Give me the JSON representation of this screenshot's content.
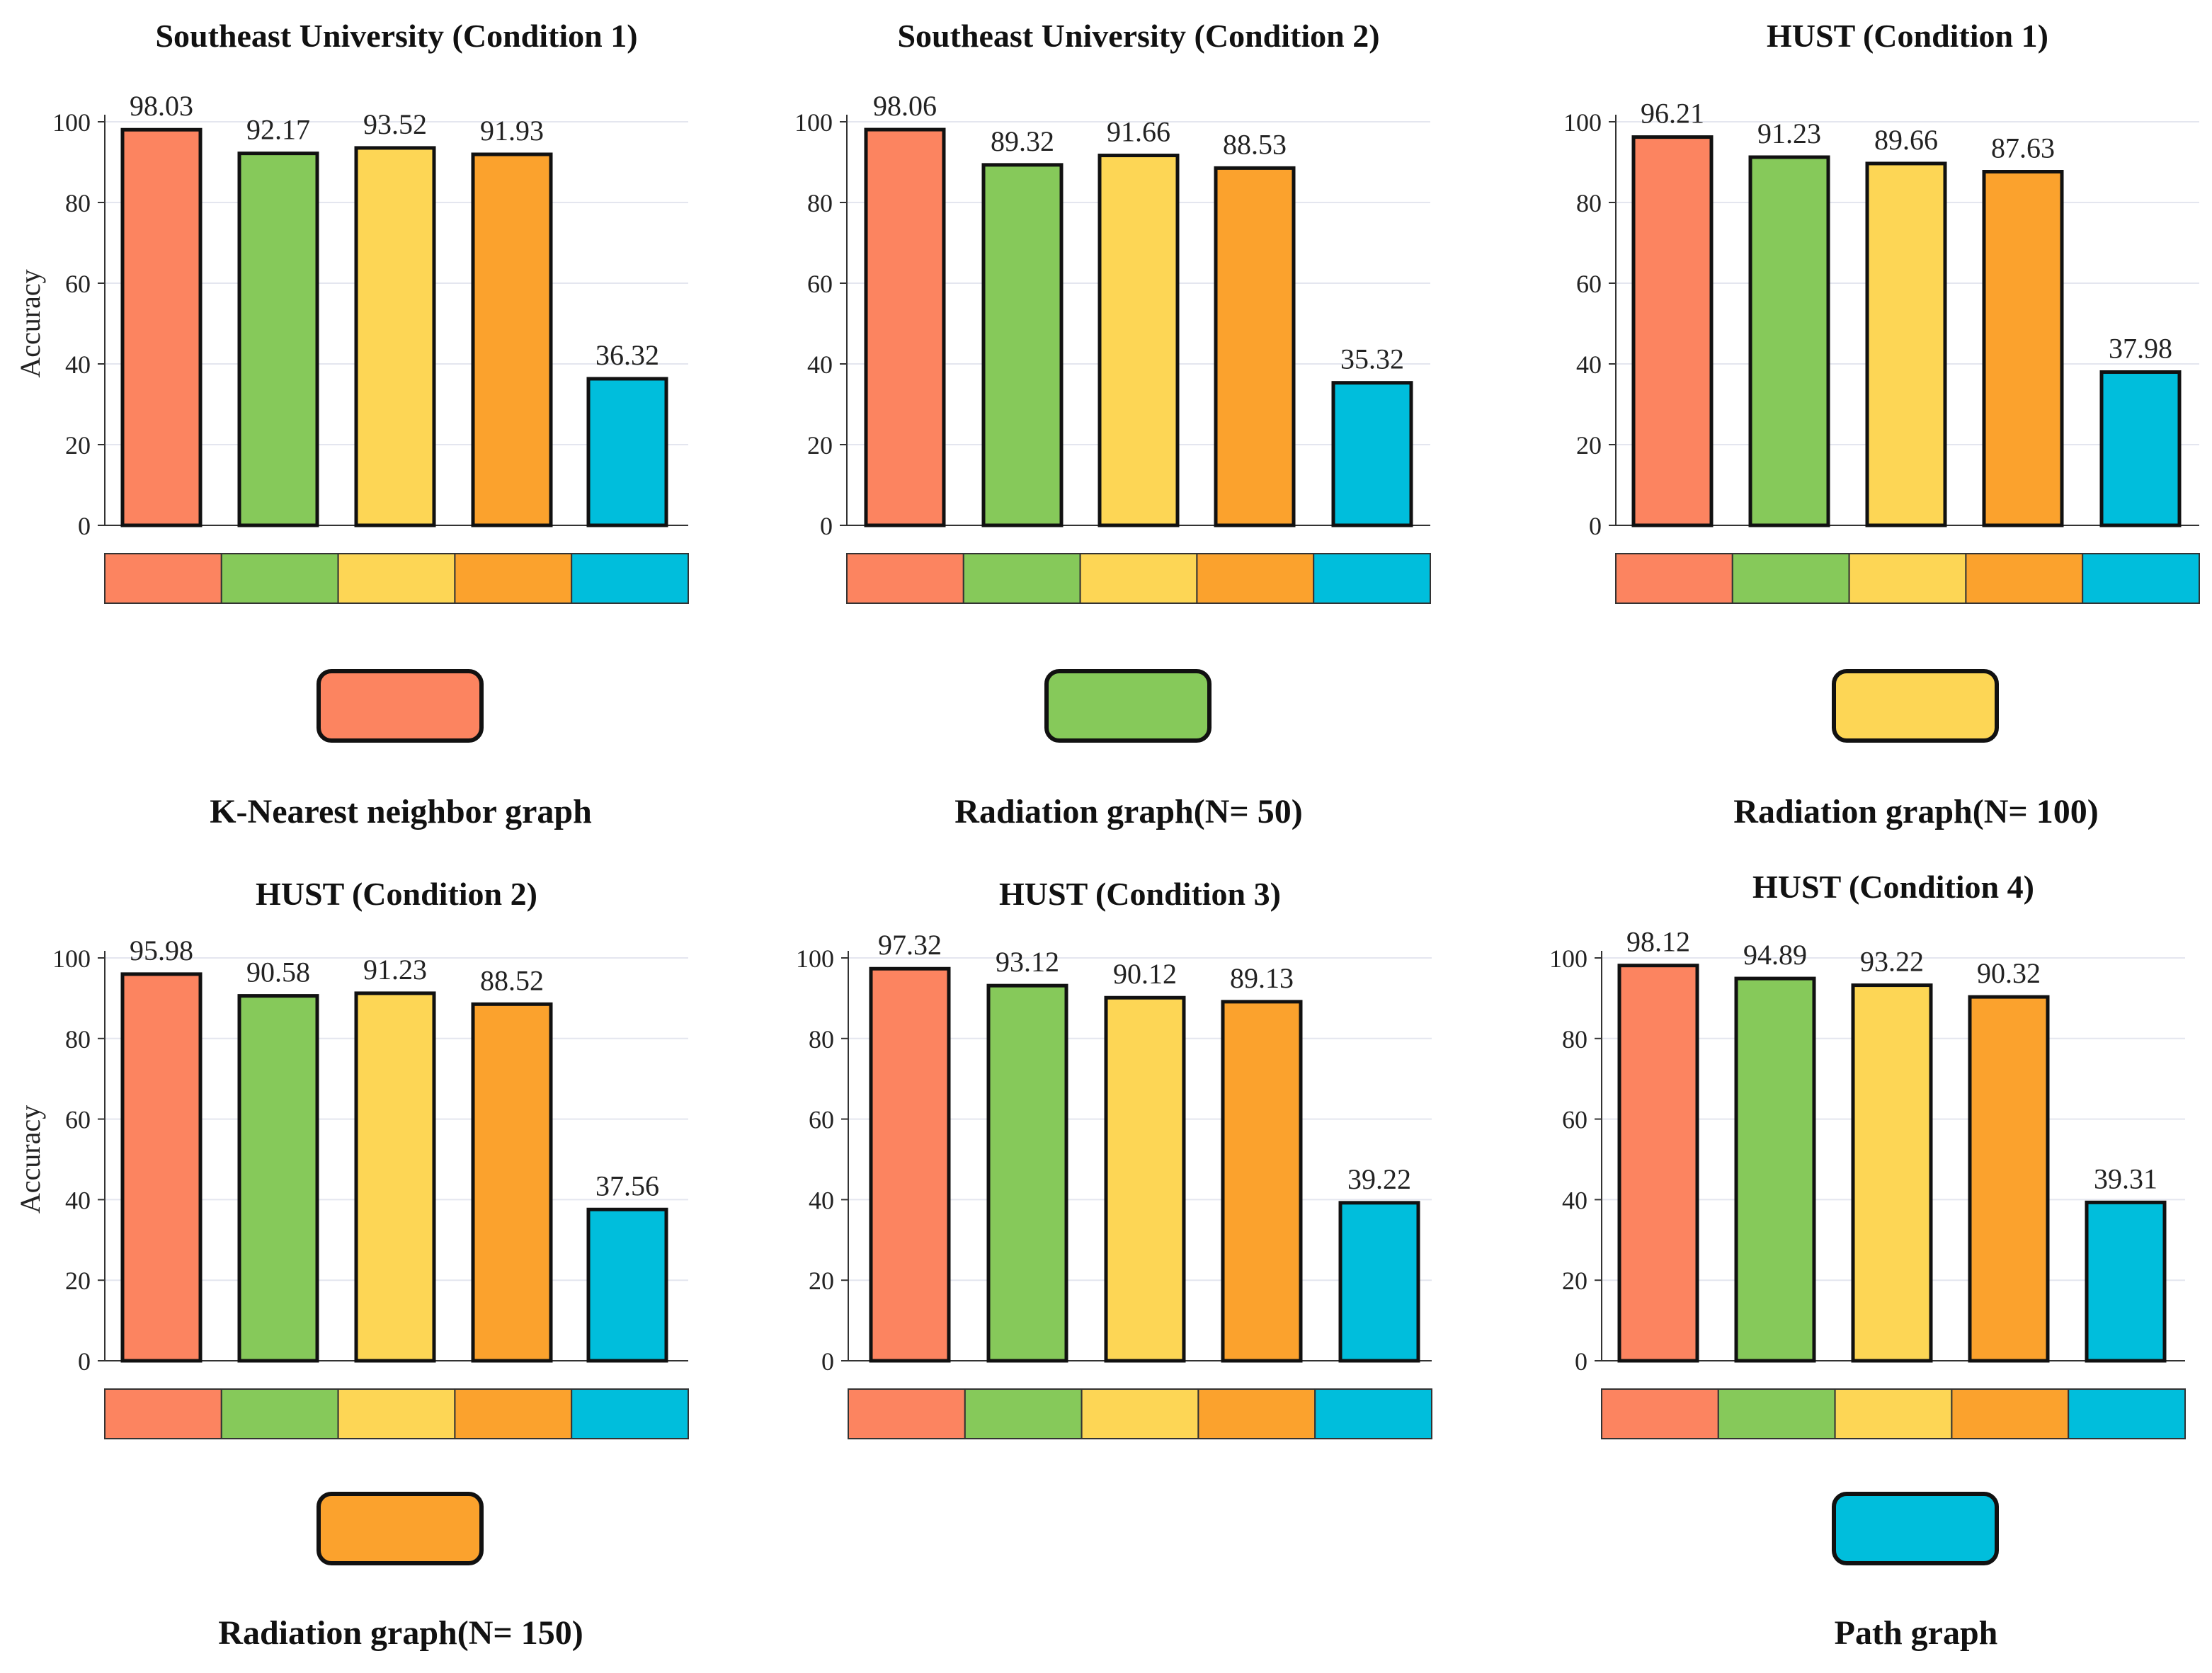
{
  "chart_data": [
    {
      "type": "bar",
      "title": "Southeast University (Condition 1)",
      "ylabel": "Accuracy",
      "ylim": [
        0,
        100
      ],
      "yticks": [
        0,
        20,
        40,
        60,
        80,
        100
      ],
      "categories": [
        "K-Nearest neighbor graph",
        "Radiation graph(N= 50)",
        "Radiation graph(N= 100)",
        "Radiation graph(N= 150)",
        "Path graph"
      ],
      "values": [
        98.03,
        92.17,
        93.52,
        91.93,
        36.32
      ],
      "value_labels": [
        "98.03",
        "92.17",
        "93.52",
        "91.93",
        "36.32"
      ]
    },
    {
      "type": "bar",
      "title": "Southeast University (Condition 2)",
      "ylabel": "",
      "ylim": [
        0,
        100
      ],
      "yticks": [
        0,
        20,
        40,
        60,
        80,
        100
      ],
      "categories": [
        "K-Nearest neighbor graph",
        "Radiation graph(N= 50)",
        "Radiation graph(N= 100)",
        "Radiation graph(N= 150)",
        "Path graph"
      ],
      "values": [
        98.06,
        89.32,
        91.66,
        88.53,
        35.32
      ],
      "value_labels": [
        "98.06",
        "89.32",
        "91.66",
        "88.53",
        "35.32"
      ]
    },
    {
      "type": "bar",
      "title": "HUST (Condition 1)",
      "ylabel": "",
      "ylim": [
        0,
        100
      ],
      "yticks": [
        0,
        20,
        40,
        60,
        80,
        100
      ],
      "categories": [
        "K-Nearest neighbor graph",
        "Radiation graph(N= 50)",
        "Radiation graph(N= 100)",
        "Radiation graph(N= 150)",
        "Path graph"
      ],
      "values": [
        96.21,
        91.23,
        89.66,
        87.63,
        37.98
      ],
      "value_labels": [
        "96.21",
        "91.23",
        "89.66",
        "87.63",
        "37.98"
      ]
    },
    {
      "type": "bar",
      "title": "HUST (Condition 2)",
      "ylabel": "Accuracy",
      "ylim": [
        0,
        100
      ],
      "yticks": [
        0,
        20,
        40,
        60,
        80,
        100
      ],
      "categories": [
        "K-Nearest neighbor graph",
        "Radiation graph(N= 50)",
        "Radiation graph(N= 100)",
        "Radiation graph(N= 150)",
        "Path graph"
      ],
      "values": [
        95.98,
        90.58,
        91.23,
        88.52,
        37.56
      ],
      "value_labels": [
        "95.98",
        "90.58",
        "91.23",
        "88.52",
        "37.56"
      ]
    },
    {
      "type": "bar",
      "title": "HUST (Condition 3)",
      "ylabel": "",
      "ylim": [
        0,
        100
      ],
      "yticks": [
        0,
        20,
        40,
        60,
        80,
        100
      ],
      "categories": [
        "K-Nearest neighbor graph",
        "Radiation graph(N= 50)",
        "Radiation graph(N= 100)",
        "Radiation graph(N= 150)",
        "Path graph"
      ],
      "values": [
        97.32,
        93.12,
        90.12,
        89.13,
        39.22
      ],
      "value_labels": [
        "97.32",
        "93.12",
        "90.12",
        "89.13",
        "39.22"
      ]
    },
    {
      "type": "bar",
      "title": "HUST (Condition 4)",
      "ylabel": "",
      "ylim": [
        0,
        100
      ],
      "yticks": [
        0,
        20,
        40,
        60,
        80,
        100
      ],
      "categories": [
        "K-Nearest neighbor graph",
        "Radiation graph(N= 50)",
        "Radiation graph(N= 100)",
        "Radiation graph(N= 150)",
        "Path graph"
      ],
      "values": [
        98.12,
        94.89,
        93.22,
        90.32,
        39.31
      ],
      "value_labels": [
        "98.12",
        "94.89",
        "93.22",
        "90.32",
        "39.31"
      ]
    }
  ],
  "legend": {
    "items": [
      {
        "label": "K-Nearest neighbor graph",
        "color": "#FC8460"
      },
      {
        "label": "Radiation graph(N= 50)",
        "color": "#86C95A"
      },
      {
        "label": "Radiation graph(N= 100)",
        "color": "#FDD655"
      },
      {
        "label": "Radiation graph(N= 150)",
        "color": "#FBA22D"
      },
      {
        "label": "Path graph",
        "color": "#00BEDC"
      }
    ]
  },
  "colors": {
    "bar_colors": [
      "#FC8460",
      "#86C95A",
      "#FDD655",
      "#FBA22D",
      "#00BEDC"
    ],
    "bar_outline": "#111111",
    "grid": "#E4E6EF",
    "axis": "#333333"
  }
}
